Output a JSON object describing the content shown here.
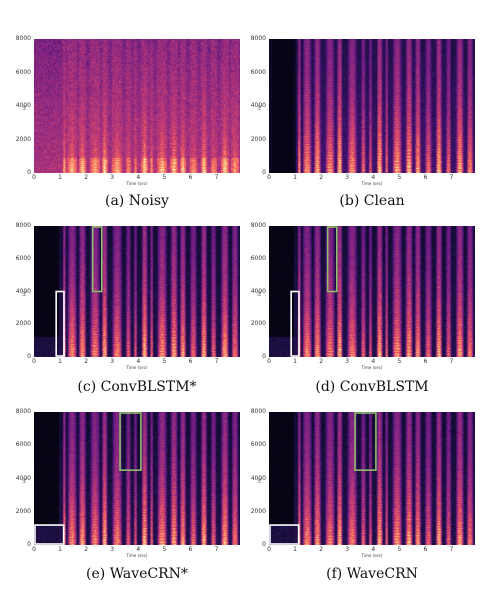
{
  "chart_data": [
    {
      "id": "a",
      "type": "heatmap",
      "caption": "(a) Noisy",
      "ylabel": "Hz",
      "xlabel": "Time (sec)",
      "y_ticks": [
        "0",
        "2000",
        "4000",
        "6000",
        "8000"
      ],
      "x_ticks": [
        "0",
        "1",
        "2",
        "3",
        "4",
        "5",
        "6",
        "7"
      ],
      "xlim": [
        0,
        7.9
      ],
      "ylim": [
        0,
        8000
      ],
      "signal": "noisy",
      "boxes": []
    },
    {
      "id": "b",
      "type": "heatmap",
      "caption": "(b) Clean",
      "ylabel": "Hz",
      "xlabel": "Time (sec)",
      "y_ticks": [
        "0",
        "2000",
        "4000",
        "6000",
        "8000"
      ],
      "x_ticks": [
        "0",
        "1",
        "2",
        "3",
        "4",
        "5",
        "6",
        "7"
      ],
      "xlim": [
        0,
        7.9
      ],
      "ylim": [
        0,
        8000
      ],
      "signal": "clean",
      "boxes": []
    },
    {
      "id": "c",
      "type": "heatmap",
      "caption": "(c) ConvBLSTM*",
      "ylabel": "Hz",
      "xlabel": "Time (sec)",
      "y_ticks": [
        "0",
        "2000",
        "4000",
        "6000",
        "8000"
      ],
      "x_ticks": [
        "0",
        "1",
        "2",
        "3",
        "4",
        "5",
        "6",
        "7"
      ],
      "xlim": [
        0,
        7.9
      ],
      "ylim": [
        0,
        8000
      ],
      "signal": "enhanced",
      "boxes": [
        {
          "color": "#ffffff",
          "x0": 0.85,
          "x1": 1.15,
          "y0": 0,
          "y1": 4000
        },
        {
          "color": "#8fbf6a",
          "x0": 2.25,
          "x1": 2.6,
          "y0": 4000,
          "y1": 8000
        }
      ]
    },
    {
      "id": "d",
      "type": "heatmap",
      "caption": "(d) ConvBLSTM",
      "ylabel": "Hz",
      "xlabel": "Time (sec)",
      "y_ticks": [
        "0",
        "2000",
        "4000",
        "6000",
        "8000"
      ],
      "x_ticks": [
        "0",
        "1",
        "2",
        "3",
        "4",
        "5",
        "6",
        "7"
      ],
      "xlim": [
        0,
        7.9
      ],
      "ylim": [
        0,
        8000
      ],
      "signal": "enhanced",
      "boxes": [
        {
          "color": "#ffffff",
          "x0": 0.85,
          "x1": 1.15,
          "y0": 0,
          "y1": 4000
        },
        {
          "color": "#8fbf6a",
          "x0": 2.25,
          "x1": 2.6,
          "y0": 4000,
          "y1": 8000
        }
      ]
    },
    {
      "id": "e",
      "type": "heatmap",
      "caption": "(e) WaveCRN*",
      "ylabel": "Hz",
      "xlabel": "Time (sec)",
      "y_ticks": [
        "0",
        "2000",
        "4000",
        "6000",
        "8000"
      ],
      "x_ticks": [
        "0",
        "1",
        "2",
        "3",
        "4",
        "5",
        "6",
        "7"
      ],
      "xlim": [
        0,
        7.9
      ],
      "ylim": [
        0,
        8000
      ],
      "signal": "enhanced",
      "boxes": [
        {
          "color": "#ffffff",
          "x0": 0.0,
          "x1": 1.1,
          "y0": 0,
          "y1": 1200
        },
        {
          "color": "#8fbf6a",
          "x0": 3.3,
          "x1": 4.1,
          "y0": 4500,
          "y1": 8000
        }
      ]
    },
    {
      "id": "f",
      "type": "heatmap",
      "caption": "(f) WaveCRN",
      "ylabel": "Hz",
      "xlabel": "Time (sec)",
      "y_ticks": [
        "0",
        "2000",
        "4000",
        "6000",
        "8000"
      ],
      "x_ticks": [
        "0",
        "1",
        "2",
        "3",
        "4",
        "5",
        "6",
        "7"
      ],
      "xlim": [
        0,
        7.9
      ],
      "ylim": [
        0,
        8000
      ],
      "signal": "enhanced",
      "boxes": [
        {
          "color": "#ffffff",
          "x0": 0.0,
          "x1": 1.1,
          "y0": 0,
          "y1": 1200
        },
        {
          "color": "#8fbf6a",
          "x0": 3.3,
          "x1": 4.1,
          "y0": 4500,
          "y1": 8000
        }
      ]
    }
  ]
}
